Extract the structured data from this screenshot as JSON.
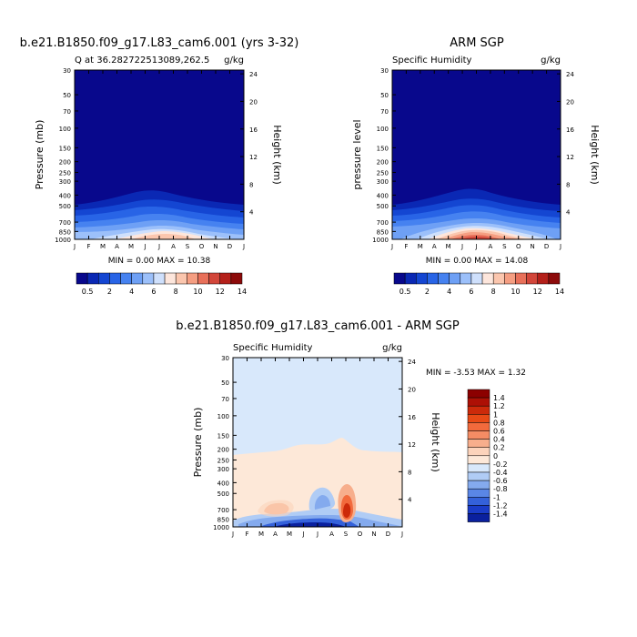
{
  "chart_data": [
    {
      "type": "contour",
      "title": "b.e21.B1850.f09_g17.L83_cam6.001 (yrs 3-32)",
      "subtitle_left": "Q at 36.282722513089,262.5",
      "subtitle_right": "g/kg",
      "ylabel": "Pressure (mb)",
      "ylabel_right": "Height (km)",
      "stats": "MIN =     0.00  MAX =   10.38",
      "min": 0.0,
      "max": 10.38,
      "x_ticks": [
        "J",
        "F",
        "M",
        "A",
        "M",
        "J",
        "J",
        "A",
        "S",
        "O",
        "N",
        "D",
        "J"
      ],
      "y_ticks": [
        "30",
        "50",
        "70",
        "100",
        "150",
        "200",
        "250",
        "300",
        "400",
        "500",
        "700",
        "850",
        "1000"
      ],
      "y_ticks_right": [
        "24",
        "20",
        "16",
        "12",
        "8",
        "4"
      ],
      "colorbar_labels": [
        "0.5",
        "2",
        "4",
        "6",
        "8",
        "10",
        "12",
        "14"
      ]
    },
    {
      "type": "contour",
      "title": "ARM SGP",
      "subtitle_left": "Specific Humidity",
      "subtitle_right": "g/kg",
      "ylabel": "pressure level",
      "ylabel_right": "Height (km)",
      "stats": "MIN =     0.00  MAX =   14.08",
      "min": 0.0,
      "max": 14.08,
      "x_ticks": [
        "J",
        "F",
        "M",
        "A",
        "M",
        "J",
        "J",
        "A",
        "S",
        "O",
        "N",
        "D",
        "J"
      ],
      "y_ticks": [
        "30",
        "50",
        "70",
        "100",
        "150",
        "200",
        "250",
        "300",
        "400",
        "500",
        "700",
        "850",
        "1000"
      ],
      "y_ticks_right": [
        "24",
        "20",
        "16",
        "12",
        "8",
        "4"
      ],
      "colorbar_labels": [
        "0.5",
        "2",
        "4",
        "6",
        "8",
        "10",
        "12",
        "14"
      ]
    },
    {
      "type": "contour",
      "title": "b.e21.B1850.f09_g17.L83_cam6.001 - ARM SGP",
      "subtitle_left": "Specific Humidity",
      "subtitle_right": "g/kg",
      "ylabel": "Pressure (mb)",
      "ylabel_right": "Height (km)",
      "stats": "MIN =    -3.53  MAX =     1.32",
      "min": -3.53,
      "max": 1.32,
      "x_ticks": [
        "J",
        "F",
        "M",
        "A",
        "M",
        "J",
        "J",
        "A",
        "S",
        "O",
        "N",
        "D",
        "J"
      ],
      "y_ticks": [
        "30",
        "50",
        "70",
        "100",
        "150",
        "200",
        "250",
        "300",
        "400",
        "500",
        "700",
        "850",
        "1000"
      ],
      "y_ticks_right": [
        "24",
        "20",
        "16",
        "12",
        "8",
        "4"
      ],
      "colorbar_labels": [
        "1.4",
        "1.2",
        "1",
        "0.8",
        "0.6",
        "0.4",
        "0.2",
        "0",
        "-0.2",
        "-0.4",
        "-0.6",
        "-0.8",
        "-1",
        "-1.2",
        "-1.4"
      ]
    }
  ],
  "colors": {
    "abs_palette": [
      "#08088c",
      "#0a28b4",
      "#1446d2",
      "#2864e6",
      "#4682f0",
      "#6ea0f5",
      "#9cc0fa",
      "#cfe0fc",
      "#fde6dc",
      "#fbc6ae",
      "#f59e82",
      "#e8705a",
      "#d2463a",
      "#b4201a",
      "#8c0a0a"
    ],
    "diff_palette": [
      "#8c0000",
      "#ad1005",
      "#cc2a0a",
      "#e84a16",
      "#f26a3c",
      "#f48c64",
      "#f7ae8c",
      "#fcd3bb",
      "#fde8d8",
      "#d8e8fb",
      "#b0ccf5",
      "#84aaee",
      "#5a86e6",
      "#3461da",
      "#1a3cc8",
      "#0a209e"
    ]
  }
}
